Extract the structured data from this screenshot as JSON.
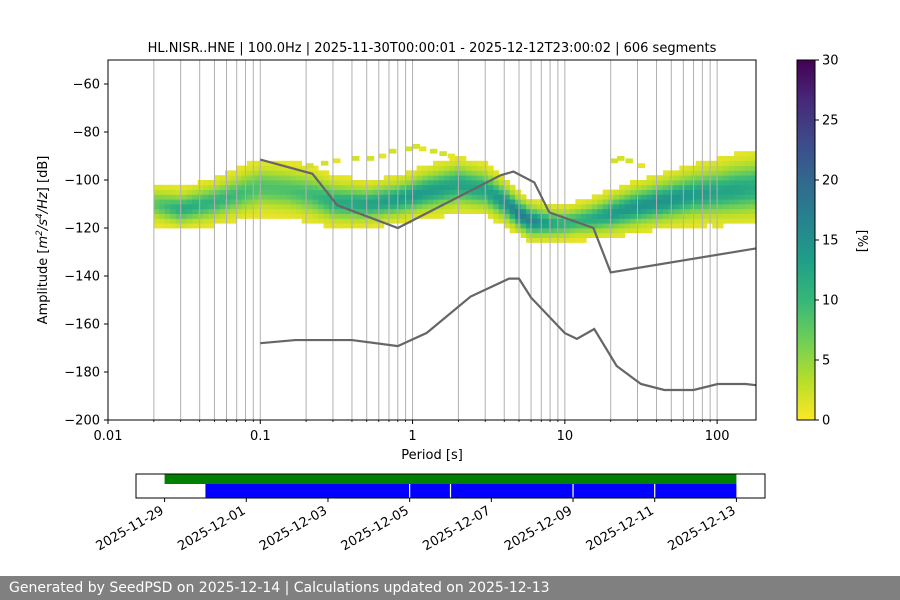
{
  "chart_data": {
    "type": "heatmap",
    "title": "HL.NISR..HNE | 100.0Hz | 2025-11-30T00:00:01 - 2025-12-12T23:00:02 | 606 segments",
    "xlabel": "Period [s]",
    "ylabel_parts": [
      "Amplitude [",
      "m",
      "2",
      "/",
      "s",
      "4",
      "/",
      "Hz",
      "] [dB]"
    ],
    "xscale": "log",
    "xlim": [
      0.01,
      180
    ],
    "ylim": [
      -200,
      -50
    ],
    "xticks": [
      {
        "value": 0.01,
        "label": "0.01"
      },
      {
        "value": 0.1,
        "label": "0.1"
      },
      {
        "value": 1,
        "label": "1"
      },
      {
        "value": 10,
        "label": "10"
      },
      {
        "value": 100,
        "label": "100"
      }
    ],
    "yticks": [
      {
        "value": -60,
        "label": "−60"
      },
      {
        "value": -80,
        "label": "−80"
      },
      {
        "value": -100,
        "label": "−100"
      },
      {
        "value": -120,
        "label": "−120"
      },
      {
        "value": -140,
        "label": "−140"
      },
      {
        "value": -160,
        "label": "−160"
      },
      {
        "value": -180,
        "label": "−180"
      },
      {
        "value": -200,
        "label": "−200"
      }
    ],
    "colorbar": {
      "label": "[%]",
      "range": [
        0,
        30
      ],
      "ticks": [
        {
          "value": 0,
          "label": "0"
        },
        {
          "value": 5,
          "label": "5"
        },
        {
          "value": 10,
          "label": "10"
        },
        {
          "value": 15,
          "label": "15"
        },
        {
          "value": 20,
          "label": "20"
        },
        {
          "value": 25,
          "label": "25"
        },
        {
          "value": 30,
          "label": "30"
        }
      ],
      "colormap": [
        "#fde725",
        "#b5de2b",
        "#6ece58",
        "#35b779",
        "#1f9e89",
        "#26828e",
        "#31688e",
        "#3e4989",
        "#482878",
        "#440154"
      ]
    },
    "pdf_band": {
      "period": [
        0.02,
        0.03,
        0.05,
        0.07,
        0.1,
        0.15,
        0.22,
        0.3,
        0.5,
        0.8,
        1.2,
        2,
        3,
        4,
        5,
        6,
        8,
        10,
        12,
        15,
        20,
        30,
        50,
        70,
        100,
        130,
        180
      ],
      "center_db": [
        -110,
        -112,
        -109,
        -106,
        -103,
        -104,
        -106,
        -109,
        -110,
        -108,
        -105,
        -102,
        -104,
        -109,
        -114,
        -117,
        -118,
        -118,
        -117,
        -116,
        -114,
        -111,
        -108,
        -106,
        -105,
        -104,
        -103
      ],
      "halfwidth_db": [
        9,
        9,
        10,
        11,
        12,
        12,
        12,
        11,
        10,
        10,
        11,
        12,
        11,
        10,
        9,
        9,
        8,
        8,
        8,
        9,
        10,
        11,
        12,
        13,
        14,
        15,
        16
      ],
      "peak_percent": [
        7,
        11,
        10,
        9,
        8,
        8,
        9,
        11,
        12,
        13,
        13,
        12,
        12,
        14,
        17,
        16,
        12,
        10,
        10,
        11,
        13,
        14,
        14,
        13,
        12,
        12,
        11
      ]
    },
    "sparse_cells": {
      "period": [
        0.2,
        0.25,
        0.3,
        0.4,
        0.5,
        0.6,
        0.7,
        0.9,
        1.0,
        1.1,
        1.3,
        1.5,
        1.7,
        20,
        22,
        25,
        30
      ],
      "db": [
        -95,
        -94,
        -93,
        -92,
        -92,
        -91,
        -89,
        -88,
        -87,
        -88,
        -89,
        -90,
        -91,
        -93,
        -92,
        -93,
        -95
      ],
      "percent": [
        2,
        2,
        1,
        2,
        2,
        1,
        2,
        2,
        2,
        1,
        2,
        2,
        1,
        2,
        2,
        2,
        1
      ]
    },
    "noise_models": [
      {
        "name": "high_noise_model",
        "period": [
          0.1,
          0.22,
          0.32,
          0.8,
          3.8,
          4.6,
          6.3,
          7.9,
          15.4,
          20.0,
          180
        ],
        "db": [
          -91.5,
          -97.4,
          -110.5,
          -120.0,
          -98.0,
          -96.5,
          -101.0,
          -113.5,
          -120.0,
          -138.5,
          -128.5
        ]
      },
      {
        "name": "low_noise_model",
        "period": [
          0.1,
          0.17,
          0.4,
          0.8,
          1.24,
          2.4,
          4.3,
          5.0,
          6.0,
          10.0,
          12.0,
          15.6,
          21.9,
          31.6,
          45.0,
          70.0,
          101.0,
          154.0,
          180
        ],
        "db": [
          -168.0,
          -166.7,
          -166.7,
          -169.2,
          -163.7,
          -148.6,
          -141.1,
          -141.1,
          -149.0,
          -163.8,
          -166.2,
          -162.1,
          -177.5,
          -185.0,
          -187.5,
          -187.5,
          -185.0,
          -185.0,
          -185.5
        ]
      }
    ],
    "availability": {
      "xlim_days": [
        -1.7,
        13.7
      ],
      "date_ticks": [
        {
          "day": -1,
          "label": "2025-11-29"
        },
        {
          "day": 1,
          "label": "2025-12-01"
        },
        {
          "day": 3,
          "label": "2025-12-03"
        },
        {
          "day": 5,
          "label": "2025-12-05"
        },
        {
          "day": 7,
          "label": "2025-12-07"
        },
        {
          "day": 9,
          "label": "2025-12-09"
        },
        {
          "day": 11,
          "label": "2025-12-11"
        },
        {
          "day": 13,
          "label": "2025-12-13"
        }
      ],
      "data_span": {
        "start_day": -1.0,
        "end_day": 13.0,
        "color": "#008000"
      },
      "psd_span": {
        "start_day": 0.0,
        "end_day": 13.0,
        "color": "#0000ff"
      },
      "gaps_days": [
        5.0,
        6.0,
        9.0,
        11.0
      ]
    }
  },
  "footer": {
    "text": "Generated by SeedPSD on 2025-12-14 | Calculations updated on 2025-12-13"
  }
}
